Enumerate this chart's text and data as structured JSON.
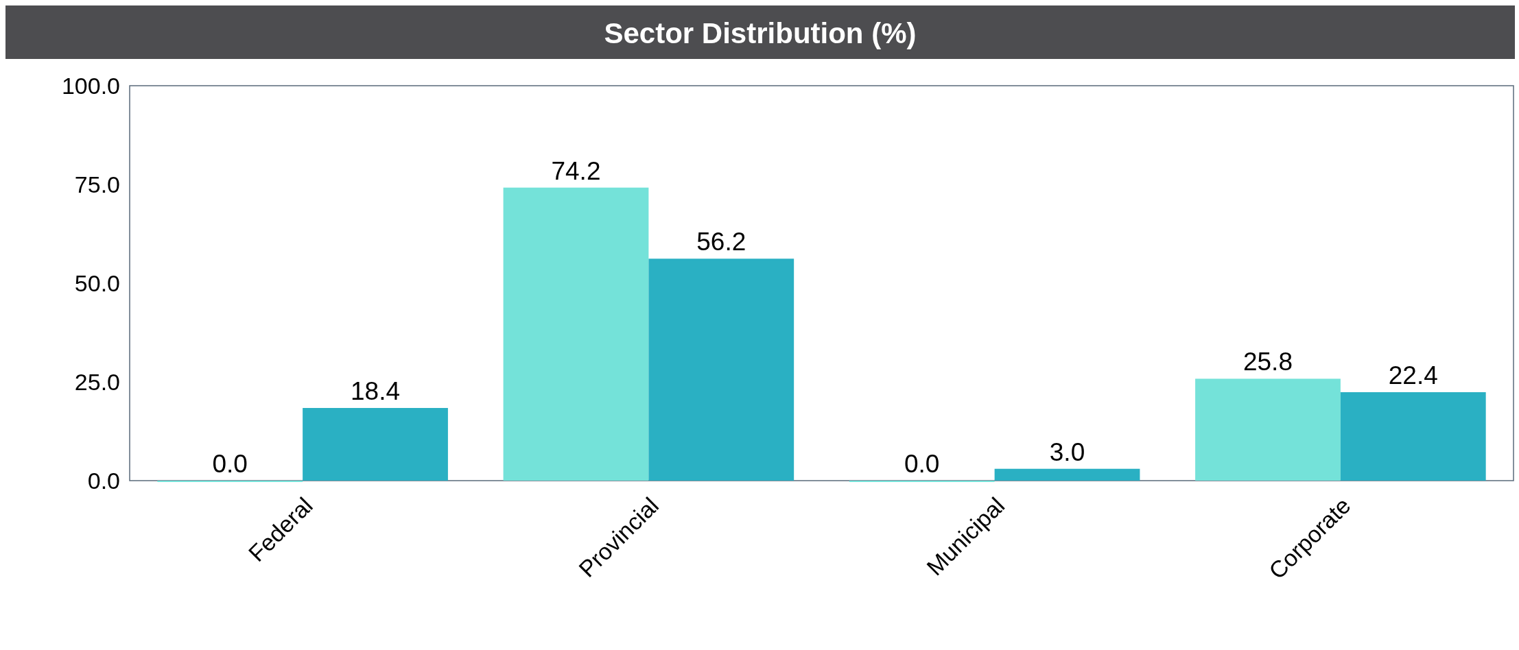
{
  "chart_data": {
    "type": "bar",
    "title": "Sector Distribution (%)",
    "categories": [
      "Federal",
      "Provincial",
      "Municipal",
      "Corporate"
    ],
    "series": [
      {
        "color": "#74e2d9",
        "values": [
          0,
          74.2,
          0,
          25.8
        ],
        "value_labels": [
          "0.0",
          "74.2",
          "0.0",
          "25.8"
        ]
      },
      {
        "color": "#2ab0c3",
        "values": [
          18.4,
          56.2,
          3,
          22.4
        ],
        "value_labels": [
          "18.4",
          "56.2",
          "3.0",
          "22.4"
        ]
      }
    ],
    "ylim": [
      0,
      100
    ],
    "yticks": [
      {
        "value": 0,
        "label": "0.0"
      },
      {
        "value": 25,
        "label": "25.0"
      },
      {
        "value": 50,
        "label": "50.0"
      },
      {
        "value": 75,
        "label": "75.0"
      },
      {
        "value": 100,
        "label": "100.0"
      }
    ],
    "grid": false
  }
}
